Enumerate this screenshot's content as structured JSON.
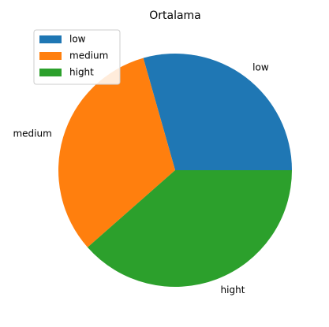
{
  "chart_data": {
    "type": "pie",
    "title": "Ortalama",
    "categories": [
      "low",
      "medium",
      "hight"
    ],
    "values": [
      29.4,
      32.1,
      38.5
    ],
    "colors": [
      "#1f77b4",
      "#ff7f0e",
      "#2ca02c"
    ],
    "start_angle_deg": 0,
    "direction": "counterclockwise",
    "legend": {
      "position": "top-left",
      "entries": [
        "low",
        "medium",
        "hight"
      ]
    }
  }
}
